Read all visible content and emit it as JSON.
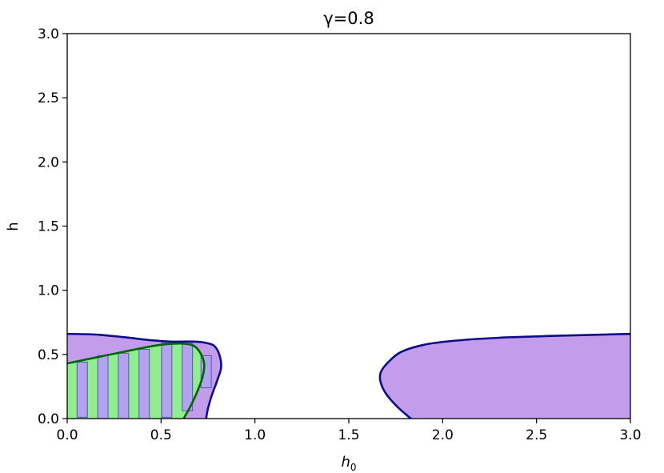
{
  "chart_data": {
    "type": "area",
    "title": "γ=0.8",
    "xlabel": {
      "main": "h",
      "sub": "0"
    },
    "ylabel": "h",
    "xlim": [
      0,
      3
    ],
    "ylim": [
      0,
      3
    ],
    "xticks": [
      "0.0",
      "0.5",
      "1.0",
      "1.5",
      "2.0",
      "2.5",
      "3.0"
    ],
    "yticks": [
      "0.0",
      "0.5",
      "1.0",
      "1.5",
      "2.0",
      "2.5",
      "3.0"
    ],
    "grid": false,
    "regions": {
      "left_purple": [
        [
          0,
          0.66
        ],
        [
          0.15,
          0.655
        ],
        [
          0.3,
          0.635
        ],
        [
          0.45,
          0.61
        ],
        [
          0.55,
          0.6
        ],
        [
          0.65,
          0.6
        ],
        [
          0.72,
          0.595
        ],
        [
          0.78,
          0.57
        ],
        [
          0.81,
          0.5
        ],
        [
          0.82,
          0.4
        ],
        [
          0.8,
          0.3
        ],
        [
          0.77,
          0.18
        ],
        [
          0.75,
          0.08
        ],
        [
          0.74,
          0
        ],
        [
          0,
          0
        ]
      ],
      "left_green": [
        [
          0,
          0.43
        ],
        [
          0.1,
          0.46
        ],
        [
          0.2,
          0.49
        ],
        [
          0.3,
          0.52
        ],
        [
          0.4,
          0.55
        ],
        [
          0.5,
          0.575
        ],
        [
          0.6,
          0.585
        ],
        [
          0.67,
          0.57
        ],
        [
          0.71,
          0.51
        ],
        [
          0.73,
          0.42
        ],
        [
          0.72,
          0.32
        ],
        [
          0.69,
          0.2
        ],
        [
          0.655,
          0.09
        ],
        [
          0.62,
          0
        ],
        [
          0,
          0
        ]
      ],
      "right_purple": [
        [
          3,
          0.66
        ],
        [
          2.6,
          0.645
        ],
        [
          2.3,
          0.63
        ],
        [
          2.05,
          0.605
        ],
        [
          1.9,
          0.575
        ],
        [
          1.78,
          0.52
        ],
        [
          1.71,
          0.44
        ],
        [
          1.67,
          0.36
        ],
        [
          1.67,
          0.28
        ],
        [
          1.7,
          0.19
        ],
        [
          1.76,
          0.09
        ],
        [
          1.83,
          0
        ],
        [
          3,
          0
        ]
      ]
    },
    "bars": [
      {
        "x": 0.08,
        "y0": 0.01,
        "y1": 0.44
      },
      {
        "x": 0.19,
        "y0": 0.0,
        "y1": 0.49
      },
      {
        "x": 0.3,
        "y0": 0.0,
        "y1": 0.51
      },
      {
        "x": 0.41,
        "y0": 0.0,
        "y1": 0.54
      },
      {
        "x": 0.53,
        "y0": 0.01,
        "y1": 0.59
      },
      {
        "x": 0.64,
        "y0": 0.06,
        "y1": 0.585
      },
      {
        "x": 0.74,
        "y0": 0.24,
        "y1": 0.49
      }
    ],
    "colors": {
      "purple_fill": "#c49cec",
      "purple_edge": "#0d0d8a",
      "green_fill": "#90ee90",
      "green_edge": "#006400",
      "bar_fill": "#b3a3ee",
      "bar_edge": "#5555b0"
    }
  }
}
